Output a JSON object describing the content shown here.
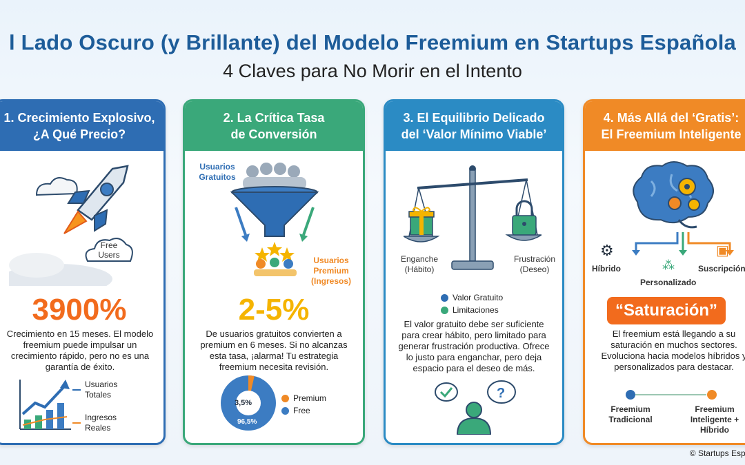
{
  "header": {
    "title": "l Lado Oscuro (y Brillante) del Modelo Freemium en Startups Española",
    "subtitle": "4 Claves para No Morir en el Intento"
  },
  "cards": [
    {
      "title_line1": "1. Crecimiento Explosivo,",
      "title_line2": "¿A Qué Precio?",
      "bubble_label": "Free Users",
      "stat": "3900%",
      "text": "Crecimiento en 15 meses. El modelo freemium puede impulsar un crecimiento rápido, pero no es una garantía de éxito.",
      "legend": [
        "Usuarios Totales",
        "Ingresos Reales"
      ]
    },
    {
      "title_line1": "2. La Crítica Tasa",
      "title_line2": "de Conversión",
      "free_label": "Usuarios Gratuitos",
      "premium_label": "Usuarios Premium (Ingresos)",
      "stat": "2-5%",
      "text": "De usuarios gratuitos convierten a premium en 6 meses. Si no alcanzas esta tasa, ¡alarma! Tu estrategia freemium necesita revisión.",
      "donut": {
        "premium_pct": "3,5%",
        "free_pct": "96,5%",
        "premium_value": 3.5
      },
      "legend": [
        "Premium",
        "Free"
      ]
    },
    {
      "title_line1": "3. El Equilibrio Delicado",
      "title_line2": "del ‘Valor Mínimo Viable’",
      "left_label": "Enganche (Hábito)",
      "right_label": "Frustración (Deseo)",
      "legend": [
        "Valor Gratuito",
        "Limitaciones"
      ],
      "text": "El valor gratuito debe ser suficiente para crear hábito, pero limitado para generar frustración productiva. Ofrece lo justo para enganchar, pero deja espacio para el deseo de más."
    },
    {
      "title_line1": "4. Más Allá del ‘Gratis’:",
      "title_line2": "El Freemium Inteligente",
      "branches": [
        "Híbrido",
        "Personalizado",
        "Suscripción"
      ],
      "highlight": "“Saturación”",
      "text": "El freemium está llegando a su saturación en muchos sectores. Evoluciona hacia modelos híbridos y personalizados para destacar.",
      "from_label": "Freemium Tradicional",
      "to_label": "Freemium Inteligente + Híbrido"
    }
  ],
  "footer": "© Startups Españ",
  "colors": {
    "blue": "#2e6db3",
    "green": "#3aa87a",
    "teal": "#2b8bc4",
    "orange": "#f08a26",
    "stat_orange": "#f26b1d",
    "stat_yellow": "#f5b400"
  }
}
